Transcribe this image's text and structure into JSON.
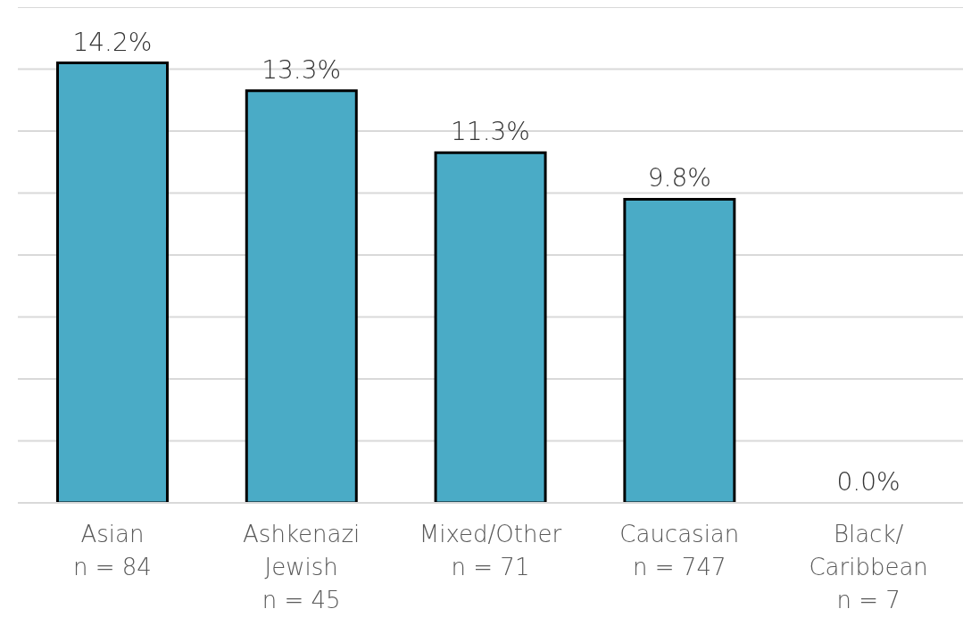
{
  "chart_data": {
    "type": "bar",
    "categories": [
      "Asian\nn = 84",
      "Ashkenazi\nJewish\nn = 45",
      "Mixed/Other\nn = 71",
      "Caucasian\nn = 747",
      "Black/\nCaribbean\nn = 7"
    ],
    "values": [
      14.2,
      13.3,
      11.3,
      9.8,
      0.0
    ],
    "value_labels": [
      "14.2%",
      "13.3%",
      "11.3%",
      "9.8%",
      "0.0%"
    ],
    "color": "#4aabc6",
    "ylim": [
      0,
      16
    ],
    "yticks": [
      {
        "value": 0,
        "label": null
      },
      {
        "value": 2,
        "label": null
      },
      {
        "value": 4,
        "label": null
      },
      {
        "value": 6,
        "label": null
      },
      {
        "value": 8,
        "label": null
      },
      {
        "value": 10,
        "label": null
      },
      {
        "value": 12,
        "label": null
      },
      {
        "value": 14,
        "label": null
      },
      {
        "value": 16,
        "label": null
      }
    ],
    "grid": "y",
    "tick_labels": "x"
  }
}
